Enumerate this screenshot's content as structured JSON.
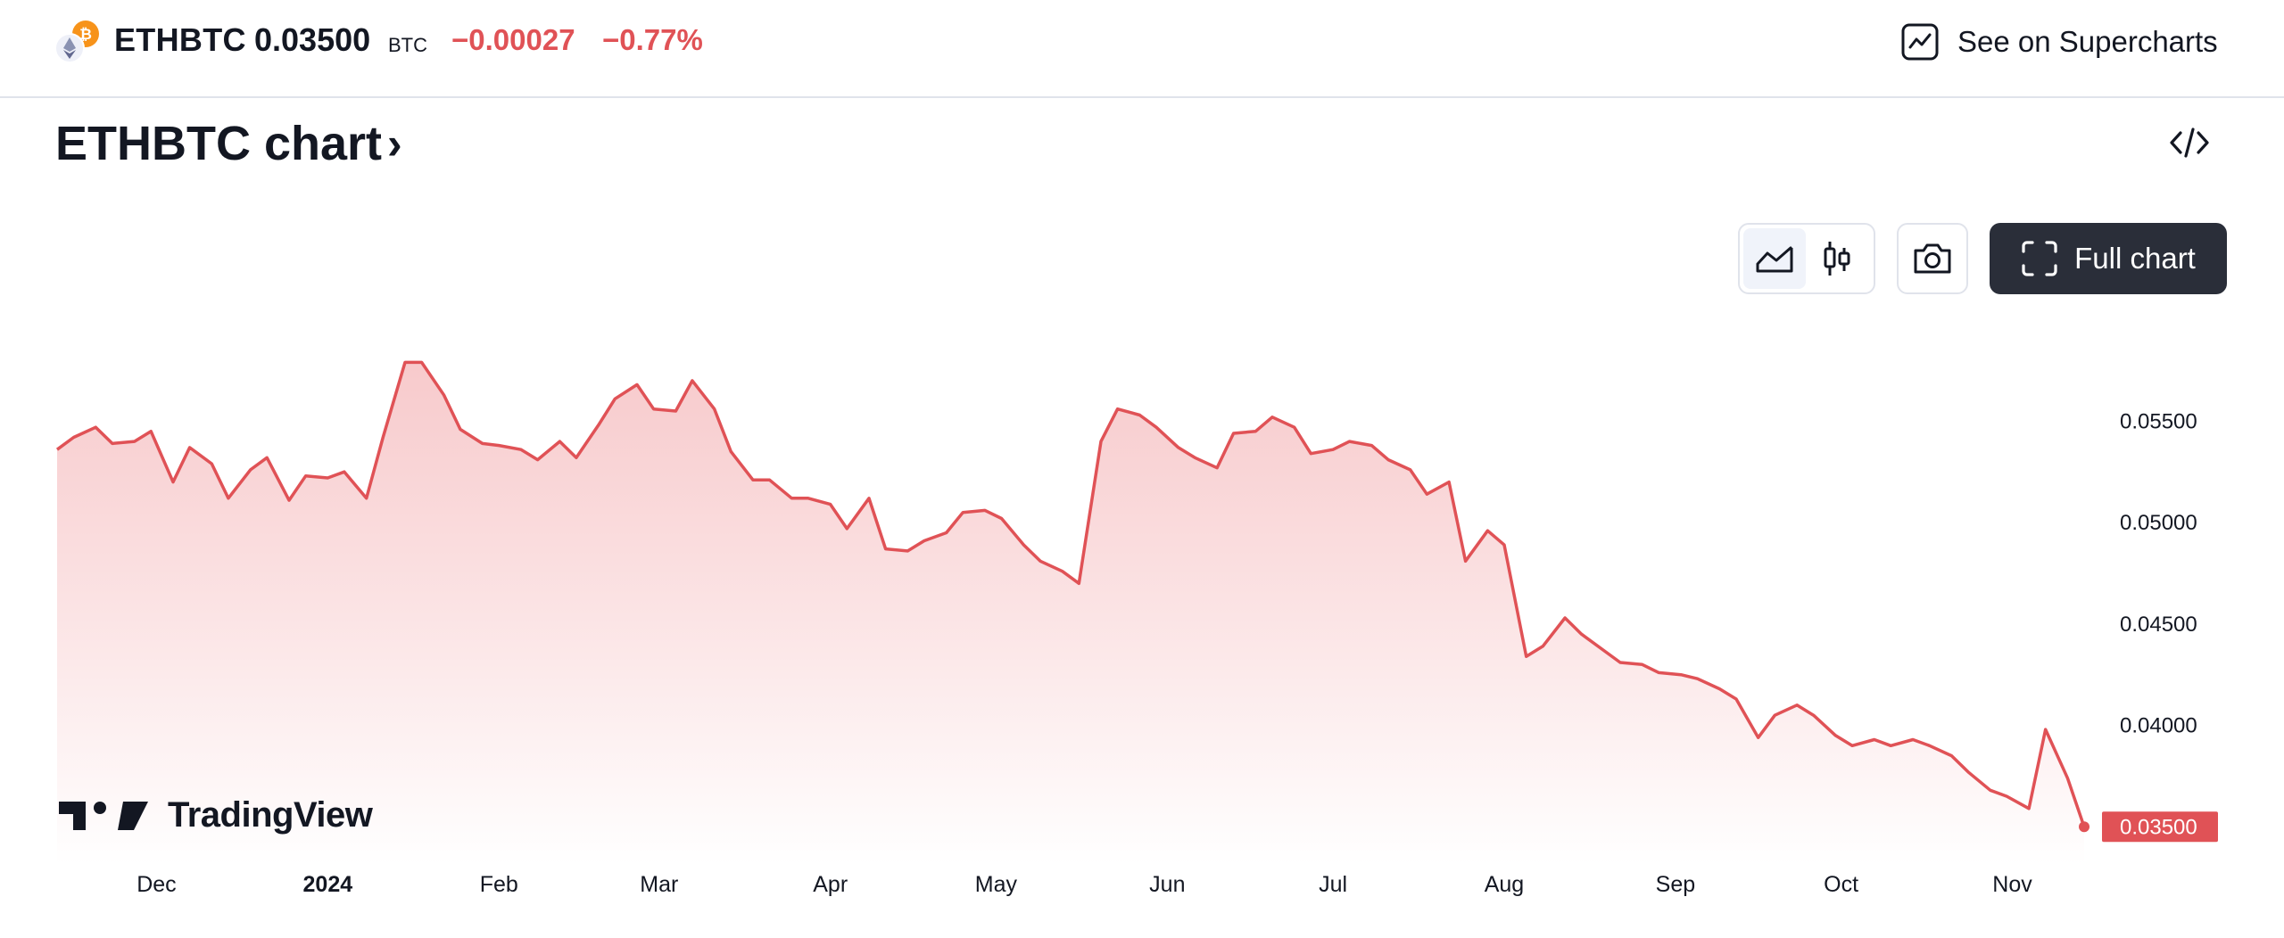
{
  "header": {
    "symbol": "ETHBTC",
    "price": "0.03500",
    "currency": "BTC",
    "change": "−0.00027",
    "change_pct": "−0.77%",
    "supercharts_label": "See on Supercharts"
  },
  "title": {
    "text": "ETHBTC chart",
    "chevron": "›"
  },
  "toolbar": {
    "chart_types": [
      {
        "icon": "area-chart-icon",
        "active": true
      },
      {
        "icon": "candles-icon",
        "active": false
      }
    ],
    "screenshot_icon": "camera-icon",
    "full_chart_label": "Full chart",
    "embed_icon": "code-icon"
  },
  "brand": {
    "name": "TradingView"
  },
  "colors": {
    "line": "#e05256",
    "fill_top": "#f7c7c9",
    "fill_bottom": "#ffffff",
    "price_badge": "#e05256",
    "dark_button": "#2a2e39"
  },
  "chart_data": {
    "type": "area",
    "title": "",
    "xlabel": "",
    "ylabel": "",
    "ylim": [
      0.034,
      0.0595
    ],
    "y_ticks": [
      "0.05500",
      "0.05000",
      "0.04500",
      "0.04000"
    ],
    "last_price_label": "0.03500",
    "x_ticks": [
      {
        "label": "Dec",
        "date": "2023-12-01",
        "bold": false
      },
      {
        "label": "2024",
        "date": "2024-01-01",
        "bold": true
      },
      {
        "label": "Feb",
        "date": "2024-02-01",
        "bold": false
      },
      {
        "label": "Mar",
        "date": "2024-03-01",
        "bold": false
      },
      {
        "label": "Apr",
        "date": "2024-04-01",
        "bold": false
      },
      {
        "label": "May",
        "date": "2024-05-01",
        "bold": false
      },
      {
        "label": "Jun",
        "date": "2024-06-01",
        "bold": false
      },
      {
        "label": "Jul",
        "date": "2024-07-01",
        "bold": false
      },
      {
        "label": "Aug",
        "date": "2024-08-01",
        "bold": false
      },
      {
        "label": "Sep",
        "date": "2024-09-01",
        "bold": false
      },
      {
        "label": "Oct",
        "date": "2024-10-01",
        "bold": false
      },
      {
        "label": "Nov",
        "date": "2024-11-01",
        "bold": false
      }
    ],
    "x_range": [
      "2023-11-13",
      "2024-11-14"
    ],
    "series": [
      {
        "points": [
          [
            "2023-11-13",
            0.0536
          ],
          [
            "2023-11-16",
            0.0542
          ],
          [
            "2023-11-20",
            0.0547
          ],
          [
            "2023-11-23",
            0.0539
          ],
          [
            "2023-11-27",
            0.054
          ],
          [
            "2023-11-30",
            0.0545
          ],
          [
            "2023-12-04",
            0.052
          ],
          [
            "2023-12-07",
            0.0537
          ],
          [
            "2023-12-11",
            0.0529
          ],
          [
            "2023-12-14",
            0.0512
          ],
          [
            "2023-12-18",
            0.0526
          ],
          [
            "2023-12-21",
            0.0532
          ],
          [
            "2023-12-25",
            0.0511
          ],
          [
            "2023-12-28",
            0.0523
          ],
          [
            "2024-01-01",
            0.0522
          ],
          [
            "2024-01-04",
            0.0525
          ],
          [
            "2024-01-08",
            0.0512
          ],
          [
            "2024-01-11",
            0.0542
          ],
          [
            "2024-01-15",
            0.0579
          ],
          [
            "2024-01-18",
            0.0579
          ],
          [
            "2024-01-22",
            0.0563
          ],
          [
            "2024-01-25",
            0.0546
          ],
          [
            "2024-01-29",
            0.0539
          ],
          [
            "2024-02-01",
            0.0538
          ],
          [
            "2024-02-05",
            0.0536
          ],
          [
            "2024-02-08",
            0.0531
          ],
          [
            "2024-02-12",
            0.054
          ],
          [
            "2024-02-15",
            0.0532
          ],
          [
            "2024-02-19",
            0.0548
          ],
          [
            "2024-02-22",
            0.0561
          ],
          [
            "2024-02-26",
            0.0568
          ],
          [
            "2024-02-29",
            0.0556
          ],
          [
            "2024-03-04",
            0.0555
          ],
          [
            "2024-03-07",
            0.057
          ],
          [
            "2024-03-11",
            0.0556
          ],
          [
            "2024-03-14",
            0.0535
          ],
          [
            "2024-03-18",
            0.0521
          ],
          [
            "2024-03-21",
            0.0521
          ],
          [
            "2024-03-25",
            0.0512
          ],
          [
            "2024-03-28",
            0.0512
          ],
          [
            "2024-04-01",
            0.0509
          ],
          [
            "2024-04-04",
            0.0497
          ],
          [
            "2024-04-08",
            0.0512
          ],
          [
            "2024-04-11",
            0.0487
          ],
          [
            "2024-04-15",
            0.0486
          ],
          [
            "2024-04-18",
            0.0491
          ],
          [
            "2024-04-22",
            0.0495
          ],
          [
            "2024-04-25",
            0.0505
          ],
          [
            "2024-04-29",
            0.0506
          ],
          [
            "2024-05-02",
            0.0502
          ],
          [
            "2024-05-06",
            0.0489
          ],
          [
            "2024-05-09",
            0.0481
          ],
          [
            "2024-05-13",
            0.0476
          ],
          [
            "2024-05-16",
            0.047
          ],
          [
            "2024-05-20",
            0.054
          ],
          [
            "2024-05-23",
            0.0556
          ],
          [
            "2024-05-27",
            0.0553
          ],
          [
            "2024-05-30",
            0.0547
          ],
          [
            "2024-06-03",
            0.0537
          ],
          [
            "2024-06-06",
            0.0532
          ],
          [
            "2024-06-10",
            0.0527
          ],
          [
            "2024-06-13",
            0.0544
          ],
          [
            "2024-06-17",
            0.0545
          ],
          [
            "2024-06-20",
            0.0552
          ],
          [
            "2024-06-24",
            0.0547
          ],
          [
            "2024-06-27",
            0.0534
          ],
          [
            "2024-07-01",
            0.0536
          ],
          [
            "2024-07-04",
            0.054
          ],
          [
            "2024-07-08",
            0.0538
          ],
          [
            "2024-07-11",
            0.0531
          ],
          [
            "2024-07-15",
            0.0526
          ],
          [
            "2024-07-18",
            0.0514
          ],
          [
            "2024-07-22",
            0.052
          ],
          [
            "2024-07-25",
            0.0481
          ],
          [
            "2024-07-29",
            0.0496
          ],
          [
            "2024-08-01",
            0.0489
          ],
          [
            "2024-08-05",
            0.0434
          ],
          [
            "2024-08-08",
            0.0439
          ],
          [
            "2024-08-12",
            0.0453
          ],
          [
            "2024-08-15",
            0.0445
          ],
          [
            "2024-08-19",
            0.0437
          ],
          [
            "2024-08-22",
            0.0431
          ],
          [
            "2024-08-26",
            0.043
          ],
          [
            "2024-08-29",
            0.0426
          ],
          [
            "2024-09-02",
            0.0425
          ],
          [
            "2024-09-05",
            0.0423
          ],
          [
            "2024-09-09",
            0.0418
          ],
          [
            "2024-09-12",
            0.0413
          ],
          [
            "2024-09-16",
            0.0394
          ],
          [
            "2024-09-19",
            0.0405
          ],
          [
            "2024-09-23",
            0.041
          ],
          [
            "2024-09-26",
            0.0405
          ],
          [
            "2024-09-30",
            0.0395
          ],
          [
            "2024-10-03",
            0.039
          ],
          [
            "2024-10-07",
            0.0393
          ],
          [
            "2024-10-10",
            0.039
          ],
          [
            "2024-10-14",
            0.0393
          ],
          [
            "2024-10-17",
            0.039
          ],
          [
            "2024-10-21",
            0.0385
          ],
          [
            "2024-10-24",
            0.0377
          ],
          [
            "2024-10-28",
            0.0368
          ],
          [
            "2024-10-31",
            0.0365
          ],
          [
            "2024-11-04",
            0.0359
          ],
          [
            "2024-11-07",
            0.0398
          ],
          [
            "2024-11-11",
            0.0374
          ],
          [
            "2024-11-14",
            0.035
          ]
        ]
      }
    ]
  }
}
